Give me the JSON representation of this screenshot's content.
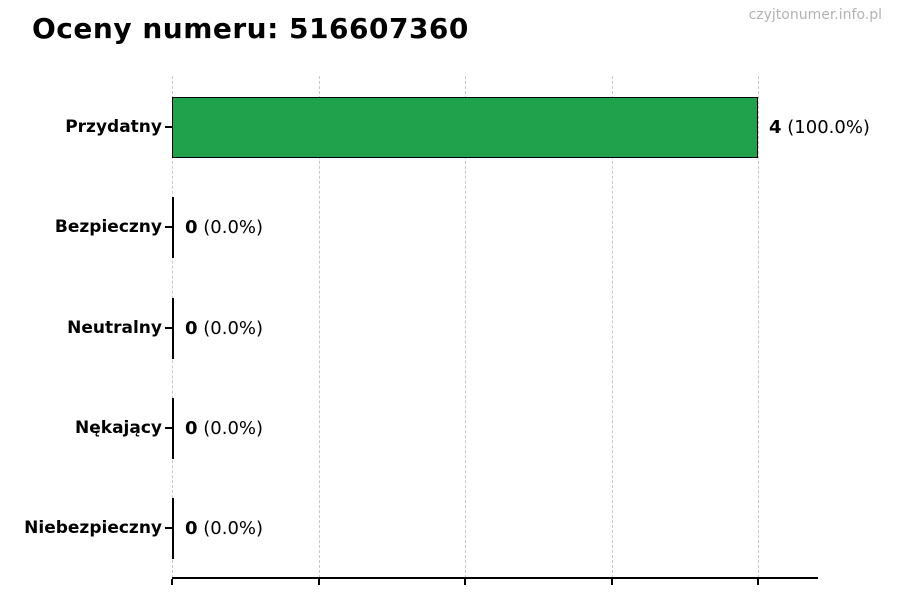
{
  "header": {
    "title": "Oceny numeru: 516607360",
    "watermark": "czyjtonumer.info.pl"
  },
  "chart_data": {
    "type": "bar",
    "orientation": "horizontal",
    "title": "Oceny numeru: 516607360",
    "categories": [
      "Przydatny",
      "Bezpieczny",
      "Neutralny",
      "Nękający",
      "Niebezpieczny"
    ],
    "values": [
      4,
      0,
      0,
      0,
      0
    ],
    "value_labels": [
      "4 (100.0%)",
      "0 (0.0%)",
      "0 (0.0%)",
      "0 (0.0%)",
      "0 (0.0%)"
    ],
    "xticks": [
      0,
      1,
      2,
      3,
      4
    ],
    "xlim": [
      0,
      4.41
    ],
    "xlabel": "",
    "ylabel": "",
    "legend": "none",
    "grid": "vertical-dashed",
    "gridline_color": "#c9c9c9",
    "bar_color": "#1fa24b",
    "bar_edge_color": "#000000",
    "background_color": "#ffffff",
    "watermark": "czyjtonumer.info.pl"
  },
  "rows": [
    {
      "label": "Przydatny",
      "count": "4",
      "pct": "(100.0%)"
    },
    {
      "label": "Bezpieczny",
      "count": "0",
      "pct": "(0.0%)"
    },
    {
      "label": "Neutralny",
      "count": "0",
      "pct": "(0.0%)"
    },
    {
      "label": "Nękający",
      "count": "0",
      "pct": "(0.0%)"
    },
    {
      "label": "Niebezpieczny",
      "count": "0",
      "pct": "(0.0%)"
    }
  ]
}
